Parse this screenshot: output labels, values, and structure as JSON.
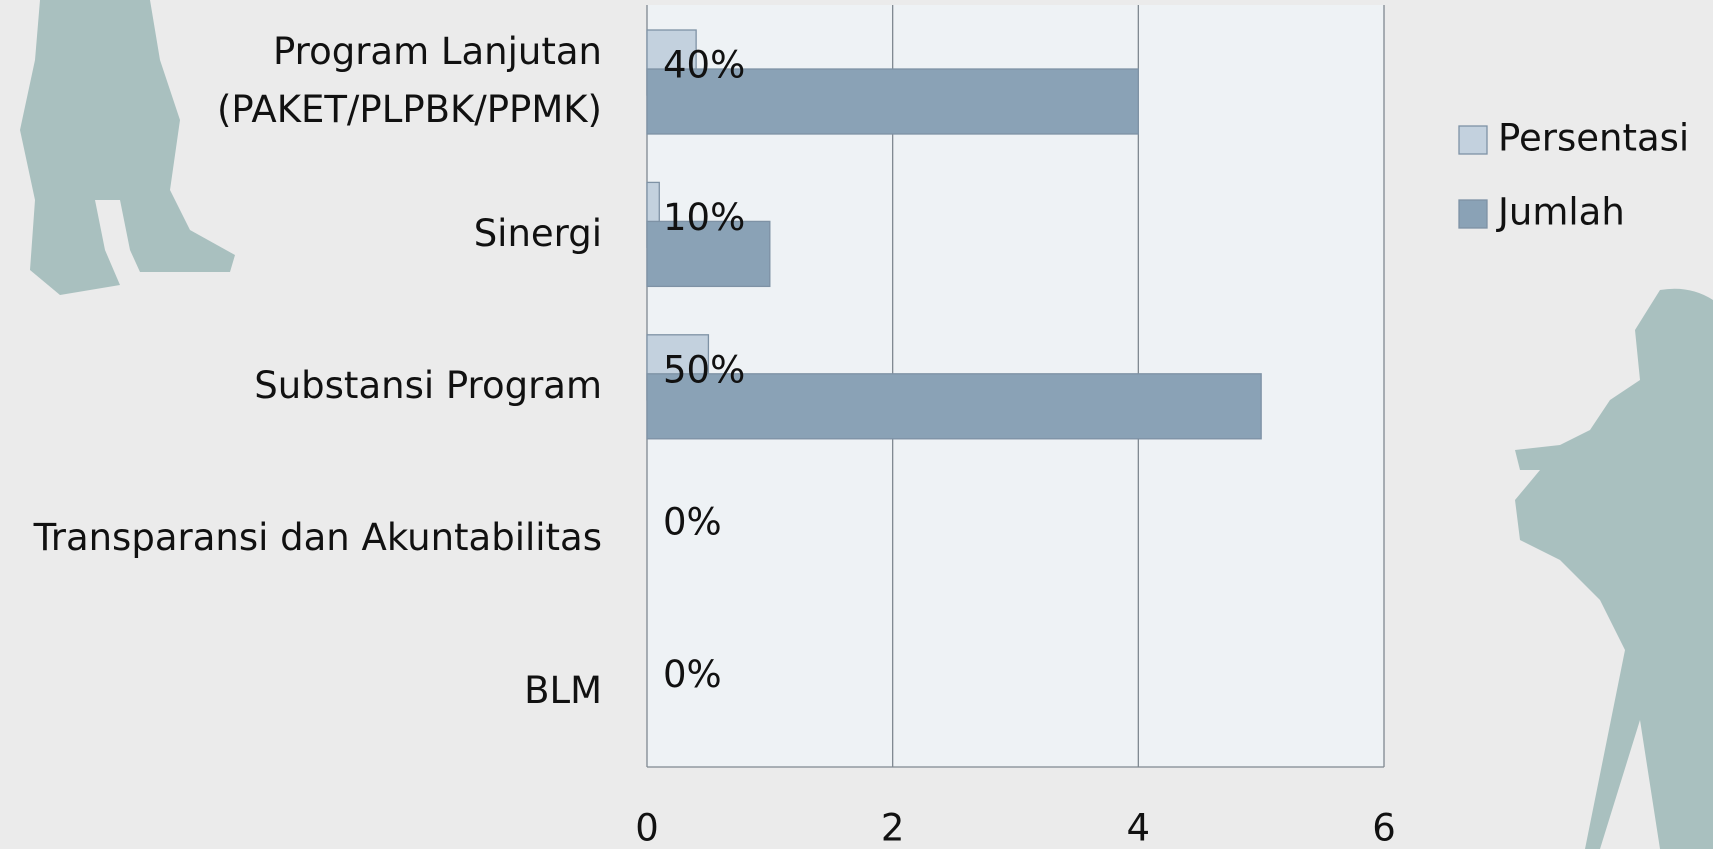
{
  "chart_data": {
    "type": "bar",
    "orientation": "horizontal",
    "categories": [
      "Program Lanjutan\n(PAKET/PLPBK/PPMK)",
      "Sinergi",
      "Substansi Program",
      "Transparansi dan Akuntabilitas",
      "BLM"
    ],
    "series": [
      {
        "name": "Persentasi",
        "color": "#c3d1de",
        "values": [
          0.4,
          0.1,
          0.5,
          0,
          0
        ],
        "value_labels": [
          "40%",
          "10%",
          "50%",
          "0%",
          "0%"
        ]
      },
      {
        "name": "Jumlah",
        "color": "#8aa2b6",
        "values": [
          4,
          1,
          5,
          0,
          0
        ]
      }
    ],
    "xlim": [
      0,
      6
    ],
    "xticks": [
      0,
      2,
      4,
      6
    ],
    "grid": true,
    "legend": "right"
  }
}
